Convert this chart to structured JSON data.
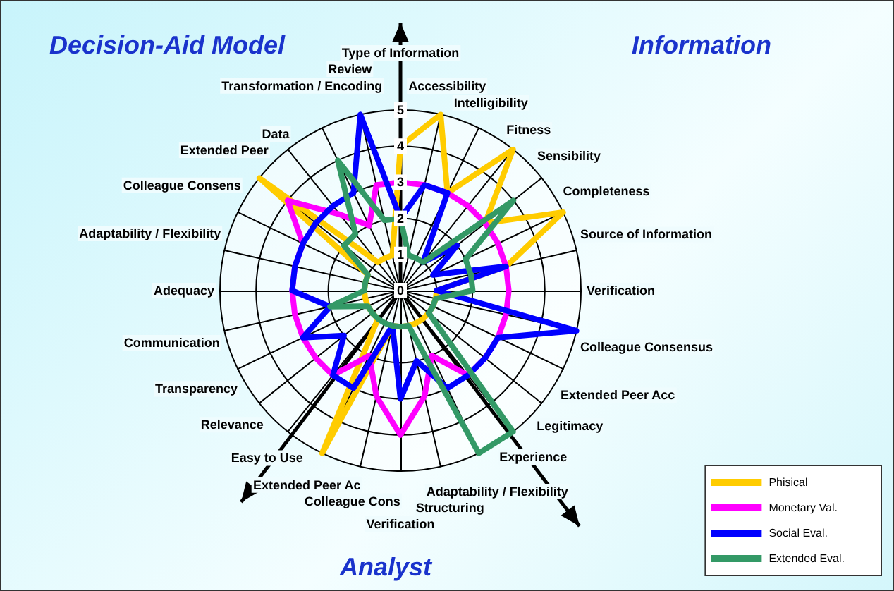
{
  "chart_data": {
    "type": "radar",
    "annotations": [
      "Decision-Aid Model",
      "Information",
      "Analyst"
    ],
    "categories": [
      "Type of Information",
      "Accessibility",
      "Intelligibility",
      "Fitness",
      "Sensibility",
      "Completeness",
      "Source of Information",
      "Verification",
      "Colleague Consensus",
      "Extended Peer Acc",
      "Legitimacy",
      "Experience",
      "Adaptability / Flexibility",
      "Structuring",
      "Verification",
      "Colleague Cons",
      "Extended Peer Ac",
      "Easy to Use",
      "Relevance",
      "Transparency",
      "Communication",
      "Adequacy",
      "Adaptability / Flexibility",
      "Colleague Consens",
      "Extended Peer",
      "Data",
      "Transformation / Encoding",
      "Review"
    ],
    "series": [
      {
        "name": "Phisical",
        "color": "#ffcc00",
        "values": [
          4,
          5,
          3,
          5,
          3,
          5,
          3,
          1,
          1,
          1,
          1,
          1,
          1,
          1,
          1,
          1,
          5,
          1,
          1,
          1,
          1,
          1,
          1,
          1,
          5,
          1,
          1,
          1
        ]
      },
      {
        "name": "Monetary Val.",
        "color": "#ff00ff",
        "values": [
          3,
          3,
          3,
          3,
          3,
          3,
          3,
          3,
          3,
          3,
          3,
          3,
          2,
          3,
          4,
          3,
          2,
          3,
          3,
          3,
          3,
          3,
          3,
          3,
          4,
          2.7,
          2,
          3
        ]
      },
      {
        "name": "Social Eval.",
        "color": "#0000ff",
        "values": [
          2,
          3,
          3,
          1,
          2,
          1,
          3,
          1,
          5,
          3,
          3,
          3,
          3,
          2,
          3,
          1,
          3,
          3,
          2,
          3,
          2,
          3,
          3,
          3,
          3,
          3,
          3,
          5
        ]
      },
      {
        "name": "Extended Eval.",
        "color": "#339966",
        "values": [
          2,
          1,
          1,
          1,
          4,
          2,
          2,
          2,
          1,
          1,
          1,
          5,
          5,
          1,
          1,
          1,
          1,
          1,
          1,
          1,
          2,
          1,
          1,
          1,
          2,
          2,
          4,
          2
        ]
      }
    ],
    "ylim": [
      0,
      5
    ],
    "yticks": [
      0,
      1,
      2,
      3,
      4,
      5
    ],
    "grid": true,
    "legend": "bottom right",
    "marker": "none",
    "line_style": "solid"
  }
}
